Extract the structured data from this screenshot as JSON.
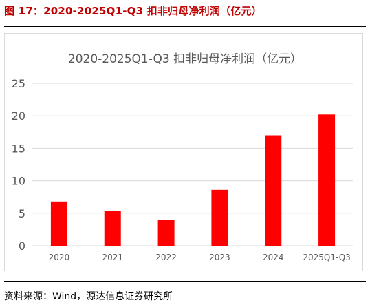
{
  "figure": {
    "label": "图 17：2020-2025Q1-Q3 扣非归母净利润（亿元）",
    "source": "资料来源：Wind，源达信息证券研究所"
  },
  "colors": {
    "accent": "#c00000",
    "bar": "#ff0000",
    "grid": "#d9d9d9",
    "axis_text": "#595959"
  },
  "chart_data": {
    "type": "bar",
    "title": "2020-2025Q1-Q3 扣非归母净利润（亿元）",
    "categories": [
      "2020",
      "2021",
      "2022",
      "2023",
      "2024",
      "2025Q1-Q3"
    ],
    "values": [
      6.8,
      5.3,
      4.0,
      8.6,
      17.0,
      20.2
    ],
    "xlabel": "",
    "ylabel": "",
    "ylim": [
      0,
      25
    ],
    "yticks": [
      0,
      5,
      10,
      15,
      20,
      25
    ],
    "grid": true,
    "legend": "none"
  }
}
